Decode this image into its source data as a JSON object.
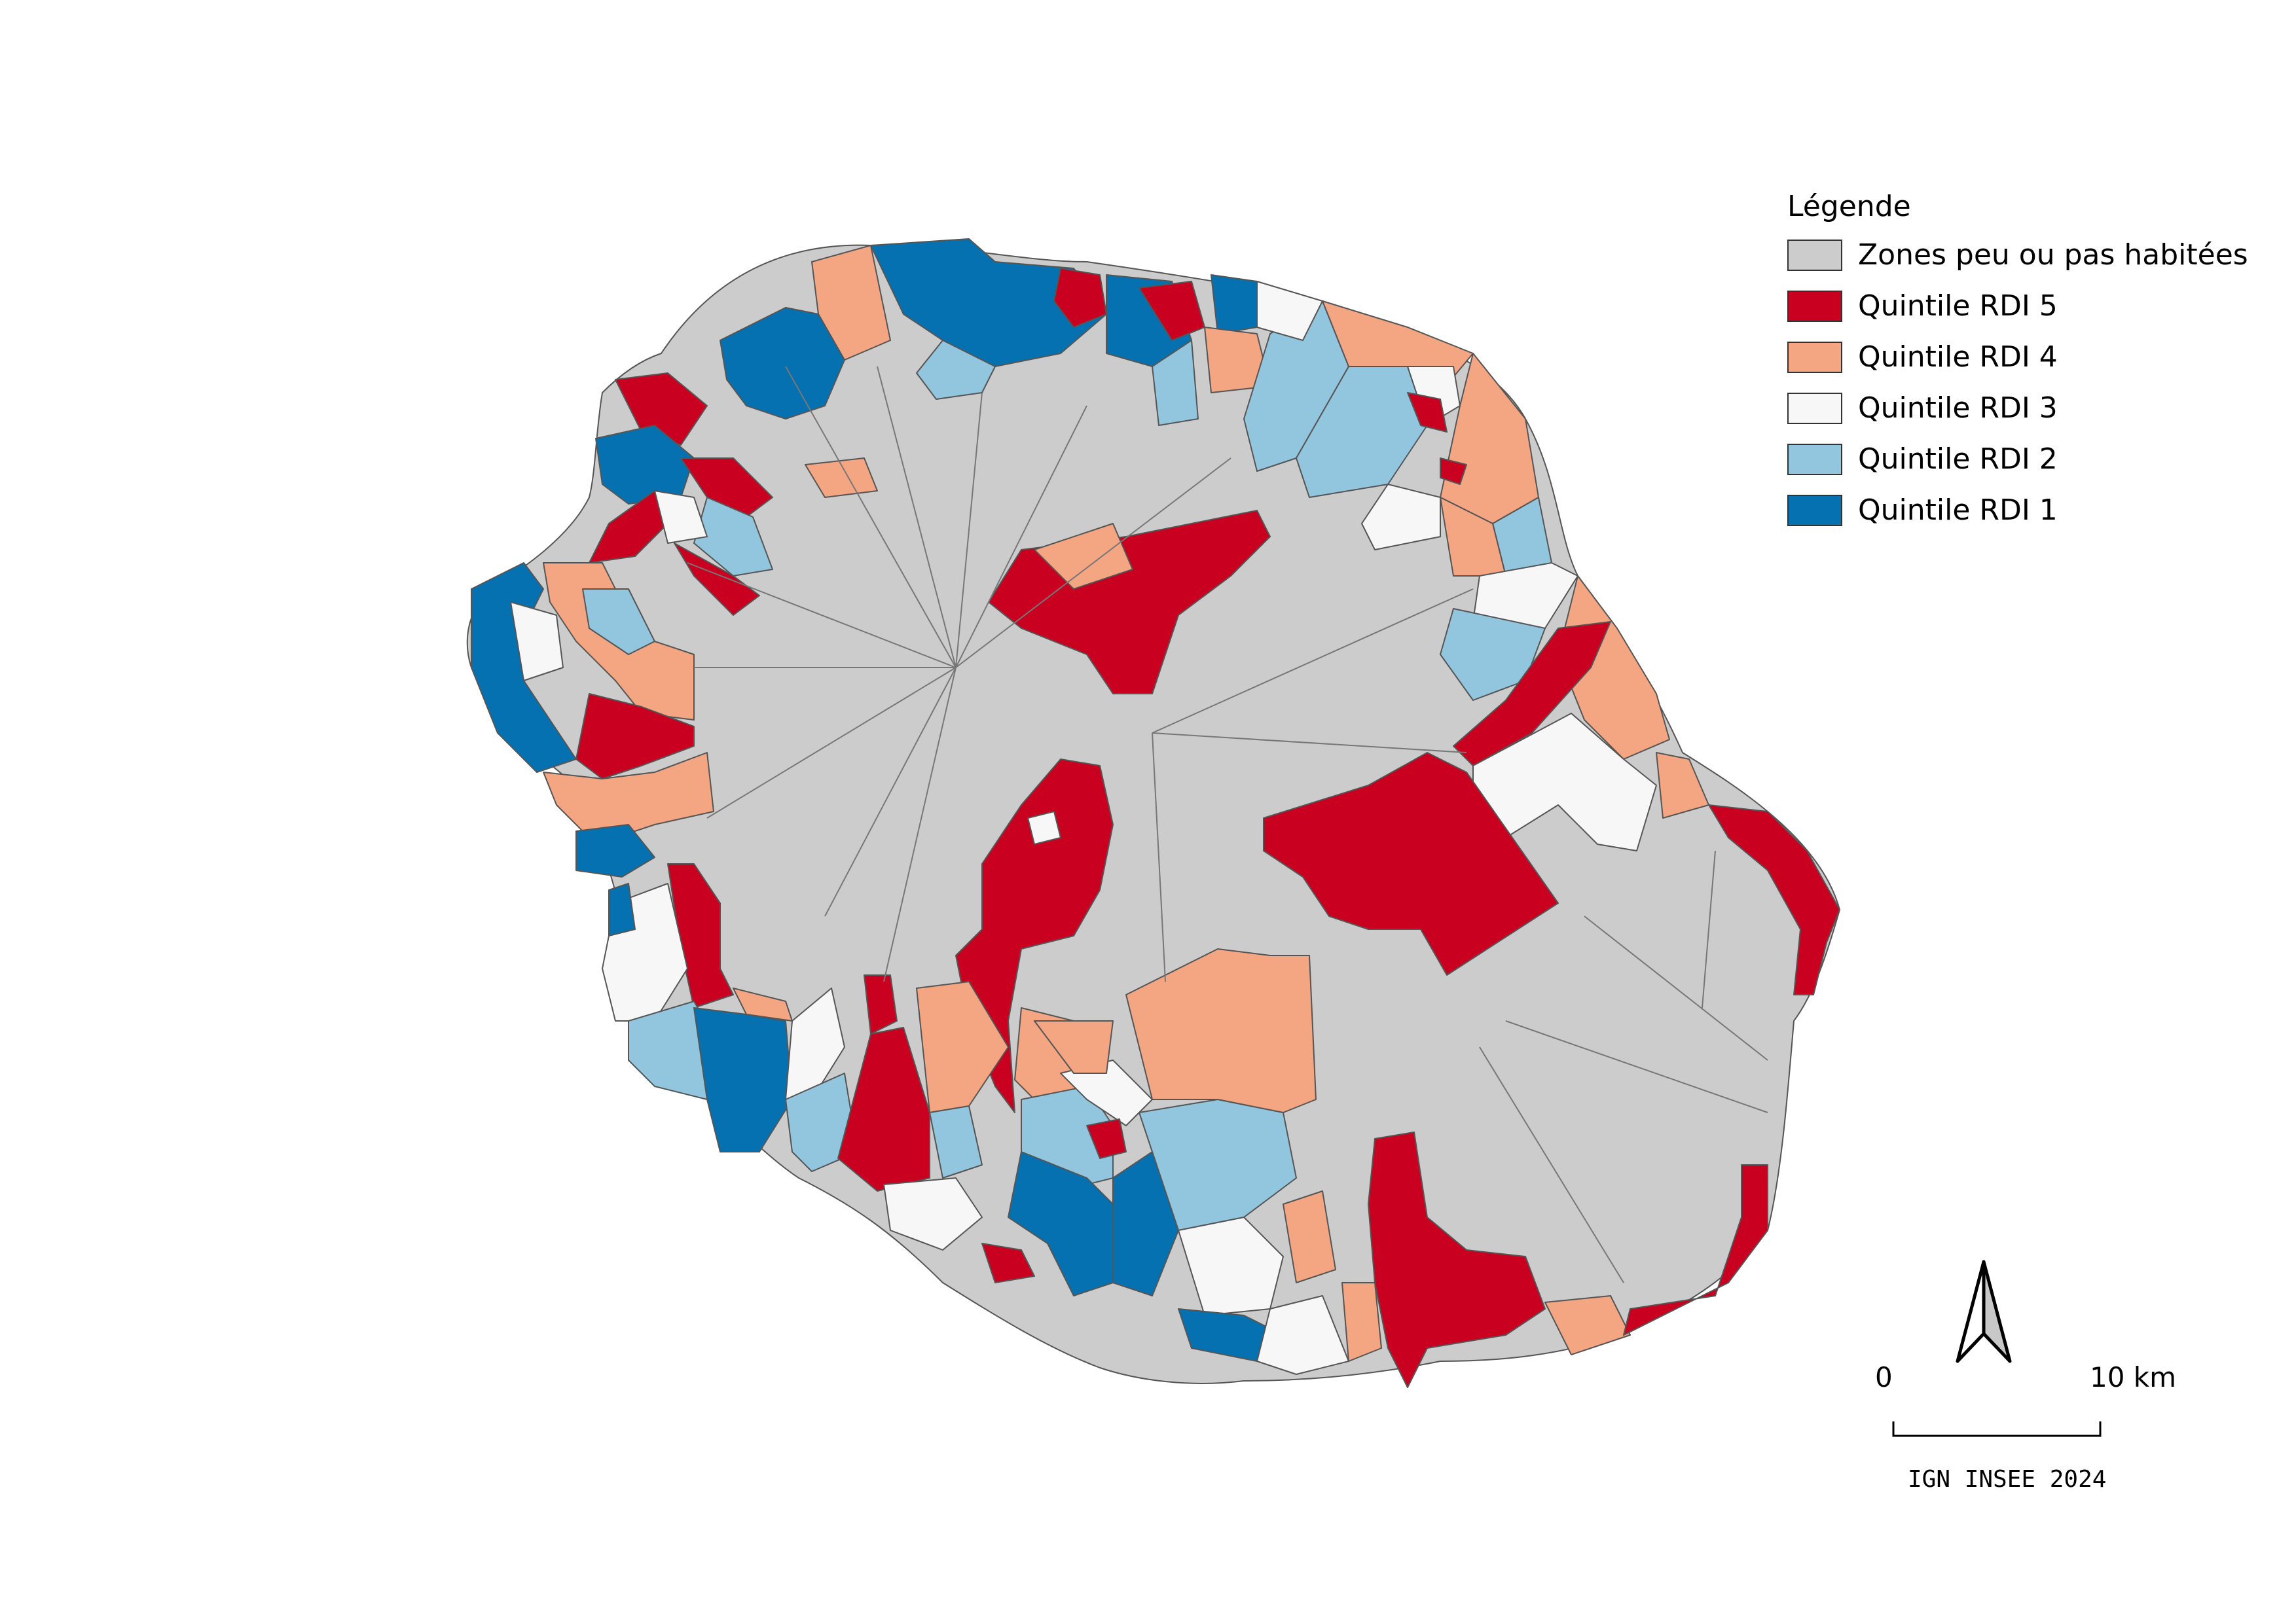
{
  "legend": {
    "title": "Légende",
    "items": [
      {
        "label": "Zones peu ou pas habitées",
        "color": "#cccccc"
      },
      {
        "label": "Quintile RDI 5",
        "color": "#ca0020"
      },
      {
        "label": "Quintile RDI 4",
        "color": "#f4a582"
      },
      {
        "label": "Quintile RDI 3",
        "color": "#f7f7f7"
      },
      {
        "label": "Quintile RDI 2",
        "color": "#92c5de"
      },
      {
        "label": "Quintile RDI 1",
        "color": "#0571b0"
      }
    ]
  },
  "scale": {
    "start_label": "0",
    "end_label": "10 km"
  },
  "source": "IGN INSEE 2024",
  "icons": {
    "north": "north-arrow-icon"
  }
}
